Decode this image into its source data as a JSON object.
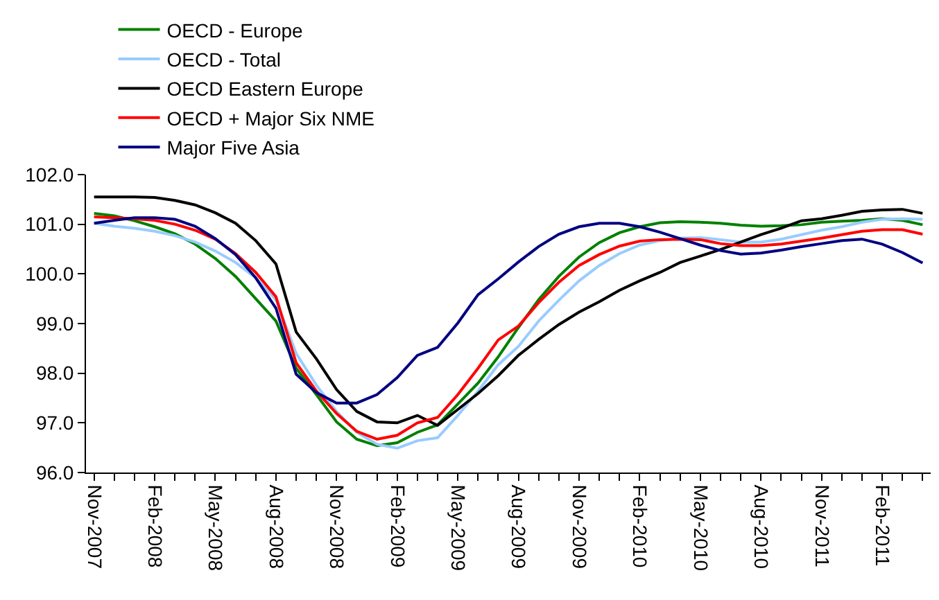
{
  "chart_data": {
    "type": "line",
    "categories": [
      "Nov-2007",
      null,
      null,
      "Feb-2008",
      null,
      null,
      "May-2008",
      null,
      null,
      "Aug-2008",
      null,
      null,
      "Nov-2008",
      null,
      null,
      "Feb-2009",
      null,
      null,
      "May-2009",
      null,
      null,
      "Aug-2009",
      null,
      null,
      "Nov-2009",
      null,
      null,
      "Feb-2010",
      null,
      null,
      "May-2010",
      null,
      null,
      "Aug-2010",
      null,
      null,
      "Nov-2011",
      null,
      null,
      "Feb-2011",
      null,
      null
    ],
    "ylim": [
      96,
      102
    ],
    "yticks": [
      {
        "value": 96,
        "label": "96.0"
      },
      {
        "value": 97,
        "label": "97.0"
      },
      {
        "value": 98,
        "label": "98.0"
      },
      {
        "value": 99,
        "label": "99.0"
      },
      {
        "value": 100,
        "label": "100.0"
      },
      {
        "value": 101,
        "label": "101.0"
      },
      {
        "value": 102,
        "label": "102.0"
      }
    ],
    "grid": false,
    "legend": "top",
    "marker": "none",
    "line_style": "solid",
    "series": [
      {
        "name": "OECD - Europe",
        "color": "#008000",
        "values": [
          101.22,
          101.17,
          101.07,
          100.95,
          100.81,
          100.6,
          100.31,
          99.95,
          99.5,
          99.05,
          98.1,
          97.57,
          97.02,
          96.67,
          96.54,
          96.6,
          96.81,
          96.96,
          97.38,
          97.8,
          98.33,
          98.92,
          99.48,
          99.95,
          100.34,
          100.63,
          100.83,
          100.95,
          101.03,
          101.05,
          101.04,
          101.02,
          100.98,
          100.96,
          100.97,
          100.99,
          101.04,
          101.06,
          101.08,
          101.11,
          101.08,
          100.99
        ]
      },
      {
        "name": "OECD - Total",
        "color": "#99ccff",
        "values": [
          101.02,
          100.96,
          100.92,
          100.86,
          100.77,
          100.64,
          100.46,
          100.23,
          99.92,
          99.48,
          98.4,
          97.76,
          97.23,
          96.81,
          96.57,
          96.49,
          96.64,
          96.7,
          97.15,
          97.64,
          98.17,
          98.54,
          99.05,
          99.47,
          99.86,
          100.17,
          100.41,
          100.58,
          100.67,
          100.72,
          100.73,
          100.69,
          100.64,
          100.64,
          100.7,
          100.79,
          100.88,
          100.95,
          101.04,
          101.1,
          101.11,
          101.1
        ]
      },
      {
        "name": "OECD Eastern Europe",
        "color": "#000000",
        "values": [
          101.55,
          101.55,
          101.55,
          101.54,
          101.48,
          101.39,
          101.23,
          101.02,
          100.67,
          100.2,
          98.83,
          98.29,
          97.67,
          97.23,
          97.02,
          97.0,
          97.15,
          96.95,
          97.27,
          97.59,
          97.95,
          98.36,
          98.68,
          98.98,
          99.23,
          99.44,
          99.67,
          99.86,
          100.03,
          100.23,
          100.36,
          100.49,
          100.64,
          100.79,
          100.92,
          101.07,
          101.11,
          101.18,
          101.26,
          101.29,
          101.3,
          101.22
        ]
      },
      {
        "name": "OECD + Major Six NME",
        "color": "#ff0000",
        "values": [
          101.15,
          101.13,
          101.11,
          101.08,
          101.0,
          100.88,
          100.7,
          100.41,
          100.03,
          99.54,
          98.21,
          97.64,
          97.19,
          96.83,
          96.67,
          96.75,
          97.0,
          97.11,
          97.57,
          98.1,
          98.67,
          98.95,
          99.42,
          99.83,
          100.17,
          100.39,
          100.56,
          100.66,
          100.69,
          100.7,
          100.69,
          100.61,
          100.57,
          100.57,
          100.6,
          100.66,
          100.72,
          100.79,
          100.86,
          100.89,
          100.89,
          100.8
        ]
      },
      {
        "name": "Major Five Asia",
        "color": "#000080",
        "values": [
          101.02,
          101.08,
          101.13,
          101.13,
          101.1,
          100.96,
          100.71,
          100.39,
          99.92,
          99.31,
          97.98,
          97.61,
          97.4,
          97.4,
          97.57,
          97.91,
          98.36,
          98.52,
          99.01,
          99.58,
          99.9,
          100.24,
          100.55,
          100.8,
          100.95,
          101.02,
          101.02,
          100.95,
          100.84,
          100.71,
          100.58,
          100.47,
          100.4,
          100.42,
          100.48,
          100.55,
          100.61,
          100.67,
          100.7,
          100.6,
          100.43,
          100.22
        ]
      }
    ]
  }
}
